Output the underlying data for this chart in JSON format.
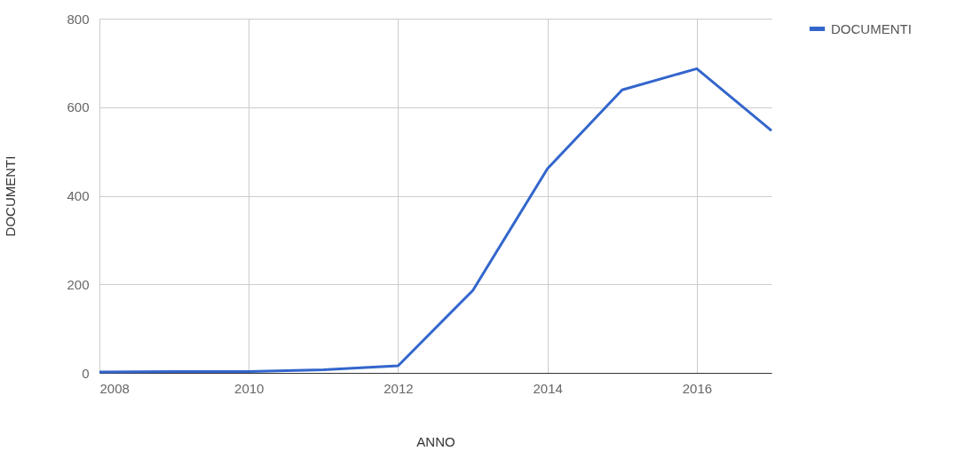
{
  "chart_data": {
    "type": "line",
    "xlabel": "ANNO",
    "ylabel": "DOCUMENTI",
    "x": [
      2008,
      2009,
      2010,
      2011,
      2012,
      2013,
      2014,
      2015,
      2016,
      2017
    ],
    "series": [
      {
        "name": "DOCUMENTI",
        "color": "#3366cc",
        "values": [
          2,
          3,
          3,
          7,
          16,
          186,
          461,
          639,
          687,
          547
        ]
      }
    ],
    "xlim": [
      2008,
      2017
    ],
    "xticks": [
      2008,
      2010,
      2012,
      2014,
      2016
    ],
    "ylim": [
      0,
      800
    ],
    "yticks": [
      0,
      200,
      400,
      600,
      800
    ],
    "grid": true,
    "legend": "top right",
    "marker": "none",
    "line_style": "solid"
  }
}
